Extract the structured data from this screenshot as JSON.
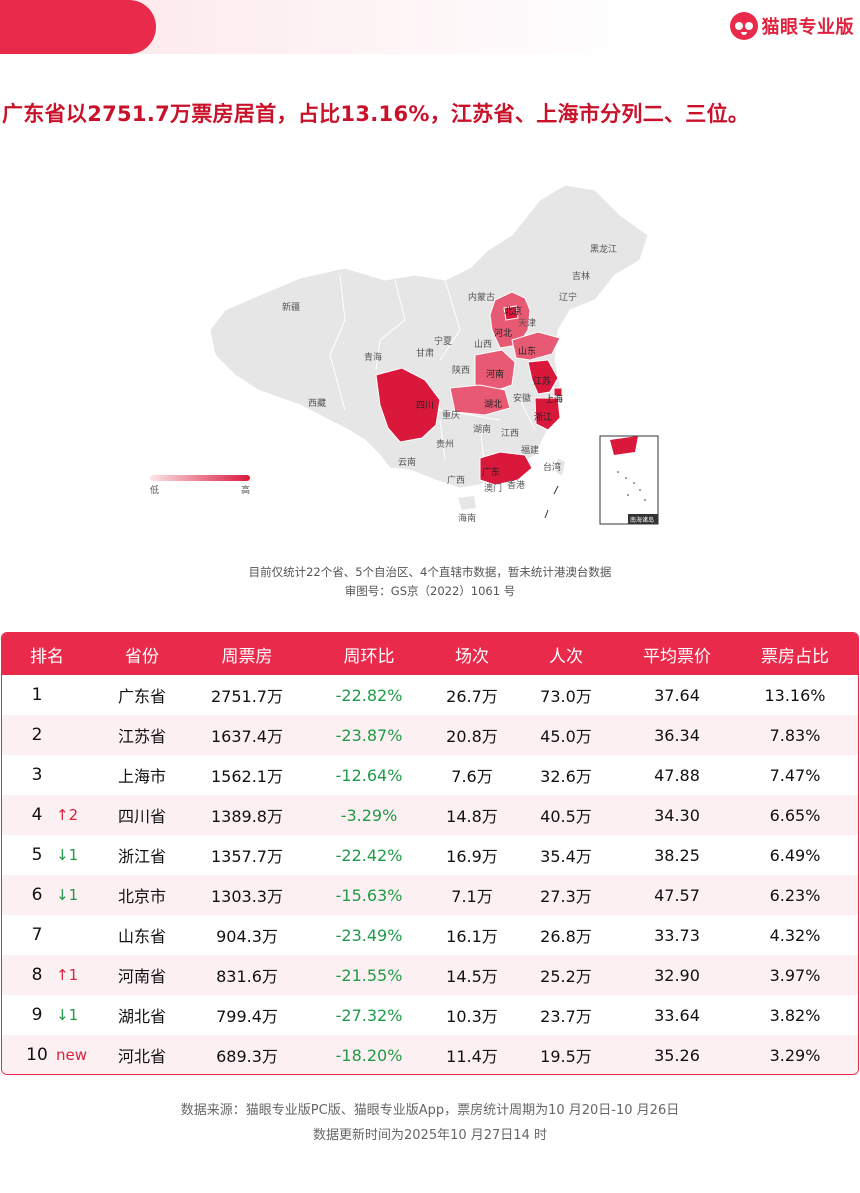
{
  "brand": {
    "name": "猫眼专业版"
  },
  "headline": "广东省以2751.7万票房居首，占比13.16%，江苏省、上海市分列二、三位。",
  "map": {
    "labels": {
      "heilongjiang": "黑龙江",
      "jilin": "吉林",
      "liaoning": "辽宁",
      "neimenggu": "内蒙古",
      "xinjiang": "新疆",
      "xizang": "西藏",
      "qinghai": "青海",
      "gansu": "甘肃",
      "ningxia": "宁夏",
      "shaanxi": "陕西",
      "shanxi": "山西",
      "beijing": "北京",
      "tianjin": "天津",
      "hebei": "河北",
      "shandong": "山东",
      "henan": "河南",
      "jiangsu": "江苏",
      "shanghai": "上海",
      "anhui": "安徽",
      "hubei": "湖北",
      "zhejiang": "浙江",
      "sichuan": "四川",
      "chongqing": "重庆",
      "hunan": "湖南",
      "jiangxi": "江西",
      "fujian": "福建",
      "guizhou": "贵州",
      "yunnan": "云南",
      "guangxi": "广西",
      "guangdong": "广东",
      "aomen": "澳门",
      "xianggang": "香港",
      "taiwan": "台湾",
      "hainan": "海南",
      "south_sea": "南海诸岛"
    },
    "legend": {
      "low": "低",
      "high": "高"
    },
    "colors": {
      "base": "#e6e6e6",
      "low": "#f2a3b0",
      "mid": "#e85a73",
      "high": "#d9183b"
    }
  },
  "captions": {
    "line1": "目前仅统计22个省、5个自治区、4个直辖市数据，暂未统计港澳台数据",
    "line2": "审图号：GS京（2022）1061 号"
  },
  "table": {
    "headers": {
      "rank": "排名",
      "province": "省份",
      "gross": "周票房",
      "wow": "周环比",
      "shows": "场次",
      "admissions": "人次",
      "avg_price": "平均票价",
      "share": "票房占比"
    },
    "rows": [
      {
        "rank": "1",
        "change": "",
        "dir": "",
        "province": "广东省",
        "gross": "2751.7万",
        "wow": "-22.82%",
        "shows": "26.7万",
        "admissions": "73.0万",
        "avg_price": "37.64",
        "share": "13.16%"
      },
      {
        "rank": "2",
        "change": "",
        "dir": "",
        "province": "江苏省",
        "gross": "1637.4万",
        "wow": "-23.87%",
        "shows": "20.8万",
        "admissions": "45.0万",
        "avg_price": "36.34",
        "share": "7.83%"
      },
      {
        "rank": "3",
        "change": "",
        "dir": "",
        "province": "上海市",
        "gross": "1562.1万",
        "wow": "-12.64%",
        "shows": "7.6万",
        "admissions": "32.6万",
        "avg_price": "47.88",
        "share": "7.47%"
      },
      {
        "rank": "4",
        "change": "2",
        "dir": "up",
        "province": "四川省",
        "gross": "1389.8万",
        "wow": "-3.29%",
        "shows": "14.8万",
        "admissions": "40.5万",
        "avg_price": "34.30",
        "share": "6.65%"
      },
      {
        "rank": "5",
        "change": "1",
        "dir": "down",
        "province": "浙江省",
        "gross": "1357.7万",
        "wow": "-22.42%",
        "shows": "16.9万",
        "admissions": "35.4万",
        "avg_price": "38.25",
        "share": "6.49%"
      },
      {
        "rank": "6",
        "change": "1",
        "dir": "down",
        "province": "北京市",
        "gross": "1303.3万",
        "wow": "-15.63%",
        "shows": "7.1万",
        "admissions": "27.3万",
        "avg_price": "47.57",
        "share": "6.23%"
      },
      {
        "rank": "7",
        "change": "",
        "dir": "",
        "province": "山东省",
        "gross": "904.3万",
        "wow": "-23.49%",
        "shows": "16.1万",
        "admissions": "26.8万",
        "avg_price": "33.73",
        "share": "4.32%"
      },
      {
        "rank": "8",
        "change": "1",
        "dir": "up",
        "province": "河南省",
        "gross": "831.6万",
        "wow": "-21.55%",
        "shows": "14.5万",
        "admissions": "25.2万",
        "avg_price": "32.90",
        "share": "3.97%"
      },
      {
        "rank": "9",
        "change": "1",
        "dir": "down",
        "province": "湖北省",
        "gross": "799.4万",
        "wow": "-27.32%",
        "shows": "10.3万",
        "admissions": "23.7万",
        "avg_price": "33.64",
        "share": "3.82%"
      },
      {
        "rank": "10",
        "change": "new",
        "dir": "new",
        "province": "河北省",
        "gross": "689.3万",
        "wow": "-18.20%",
        "shows": "11.4万",
        "admissions": "19.5万",
        "avg_price": "35.26",
        "share": "3.29%"
      }
    ]
  },
  "footer": {
    "line1": "数据来源：猫眼专业版PC版、猫眼专业版App，票房统计周期为10 月20日-10 月26日",
    "line2": "数据更新时间为2025年10 月27日14 时"
  }
}
